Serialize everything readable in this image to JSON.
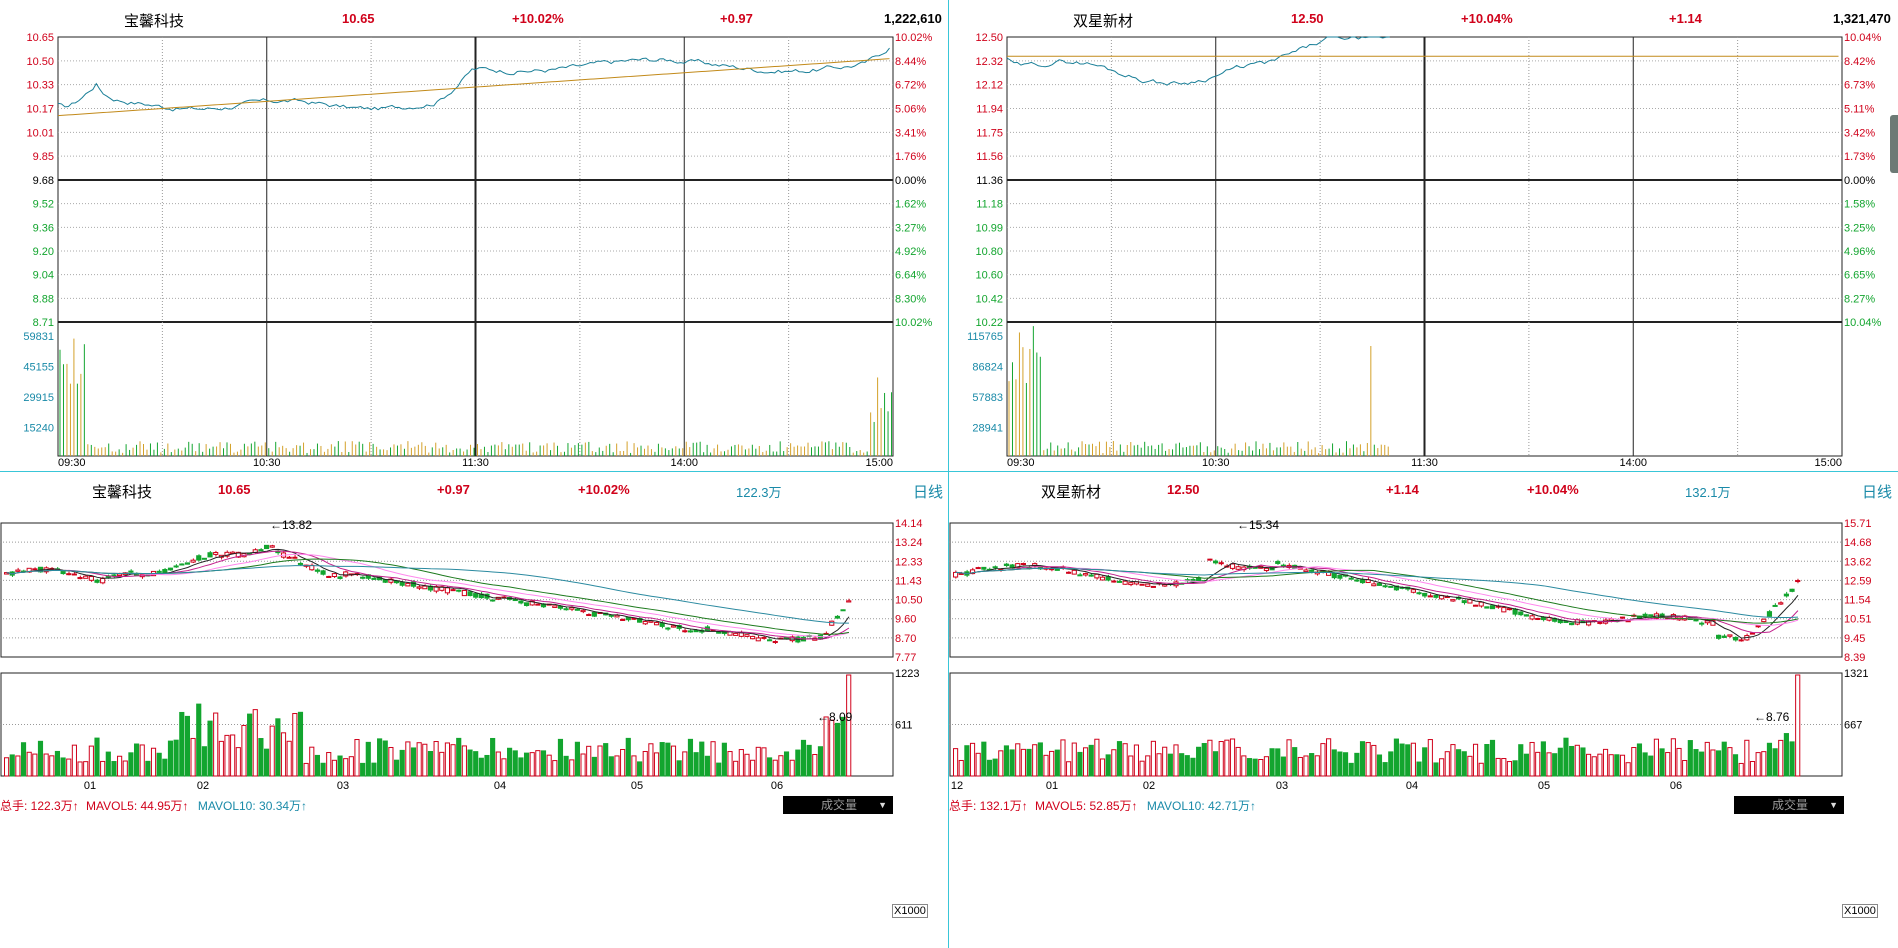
{
  "colors": {
    "up": "#d0021b",
    "down": "#13a52f",
    "price": "#1a7f98",
    "avg": "#c28a1a",
    "grid": "#333333",
    "teal": "#1a8aa8",
    "ma5": "#222222",
    "ma10": "#c21f8c",
    "ma20": "#ff88ee",
    "ma30": "#1d7a1d",
    "ma60": "#2b8aa0"
  },
  "panels": [
    {
      "id": "left",
      "intraday": {
        "name": "宝馨科技",
        "price": "10.65",
        "pct": "+10.02%",
        "change": "+0.97",
        "volume": "1,222,610",
        "price_ticks_up": [
          "10.65",
          "10.50",
          "10.33",
          "10.17",
          "10.01",
          "9.85"
        ],
        "base": "9.68",
        "price_ticks_down": [
          "9.52",
          "9.36",
          "9.20",
          "9.04",
          "8.88",
          "8.71"
        ],
        "pct_ticks_up": [
          "10.02%",
          "8.44%",
          "6.72%",
          "5.06%",
          "3.41%",
          "1.76%"
        ],
        "pct_base": "0.00%",
        "pct_ticks_down": [
          "1.62%",
          "3.27%",
          "4.92%",
          "6.64%",
          "8.30%",
          "10.02%"
        ],
        "vol_ticks": [
          "59831",
          "45155",
          "29915",
          "15240"
        ],
        "time_labels": [
          "09:30",
          "10:30",
          "11:30",
          "14:00",
          "15:00"
        ],
        "chart_data": {
          "type": "line",
          "series": [],
          "x": [
            "09:30",
            "10:30",
            "11:30",
            "14:00",
            "15:00"
          ],
          "ylim": [
            8.71,
            10.65
          ]
        }
      },
      "daily": {
        "name": "宝馨科技",
        "price": "10.65",
        "change": "+0.97",
        "pct": "+10.02%",
        "turnover": "122.3万",
        "period": "日线",
        "price_ticks": [
          "14.14",
          "13.24",
          "12.33",
          "11.43",
          "10.50",
          "9.60",
          "8.70",
          "7.77"
        ],
        "high_label": "13.82",
        "low_label": "8.09",
        "legend": {
          "total": "总手: 122.3万↑",
          "mavol5": "MAVOL5: 44.95万↑",
          "mavol10": "MAVOL10: 30.34万↑"
        },
        "tab": "成交量",
        "vol_ticks": [
          "1223",
          "611"
        ],
        "zoom": "X1000",
        "months": [
          "01",
          "02",
          "03",
          "04",
          "05",
          "06"
        ],
        "chart_data": {
          "type": "candlestick",
          "ylim": [
            7.77,
            14.14
          ],
          "high": 13.82,
          "low": 8.09,
          "last": 10.65
        }
      }
    },
    {
      "id": "right",
      "intraday": {
        "name": "双星新材",
        "price": "12.50",
        "pct": "+10.04%",
        "change": "+1.14",
        "volume": "1,321,470",
        "price_ticks_up": [
          "12.50",
          "12.32",
          "12.12",
          "11.94",
          "11.75",
          "11.56"
        ],
        "base": "11.36",
        "price_ticks_down": [
          "11.18",
          "10.99",
          "10.80",
          "10.60",
          "10.42",
          "10.22"
        ],
        "pct_ticks_up": [
          "10.04%",
          "8.42%",
          "6.73%",
          "5.11%",
          "3.42%",
          "1.73%"
        ],
        "pct_base": "0.00%",
        "pct_ticks_down": [
          "1.58%",
          "3.25%",
          "4.96%",
          "6.65%",
          "8.27%",
          "10.04%"
        ],
        "vol_ticks": [
          "115765",
          "86824",
          "57883",
          "28941"
        ],
        "time_labels": [
          "09:30",
          "10:30",
          "11:30",
          "14:00",
          "15:00"
        ],
        "chart_data": {
          "type": "line",
          "series": [],
          "x": [
            "09:30",
            "10:30",
            "11:30",
            "14:00",
            "15:00"
          ],
          "ylim": [
            10.22,
            12.5
          ]
        }
      },
      "daily": {
        "name": "双星新材",
        "price": "12.50",
        "change": "+1.14",
        "pct": "+10.04%",
        "turnover": "132.1万",
        "period": "日线",
        "price_ticks": [
          "15.71",
          "14.68",
          "13.62",
          "12.59",
          "11.54",
          "10.51",
          "9.45",
          "8.39"
        ],
        "high_label": "15.34",
        "low_label": "8.76",
        "legend": {
          "total": "总手: 132.1万↑",
          "mavol5": "MAVOL5: 52.85万↑",
          "mavol10": "MAVOL10: 42.71万↑"
        },
        "tab": "成交量",
        "vol_ticks": [
          "1321",
          "667"
        ],
        "zoom": "X1000",
        "months": [
          "12",
          "01",
          "02",
          "03",
          "04",
          "05",
          "06"
        ],
        "chart_data": {
          "type": "candlestick",
          "ylim": [
            8.39,
            15.71
          ],
          "high": 15.34,
          "low": 8.76,
          "last": 12.5
        }
      }
    }
  ]
}
